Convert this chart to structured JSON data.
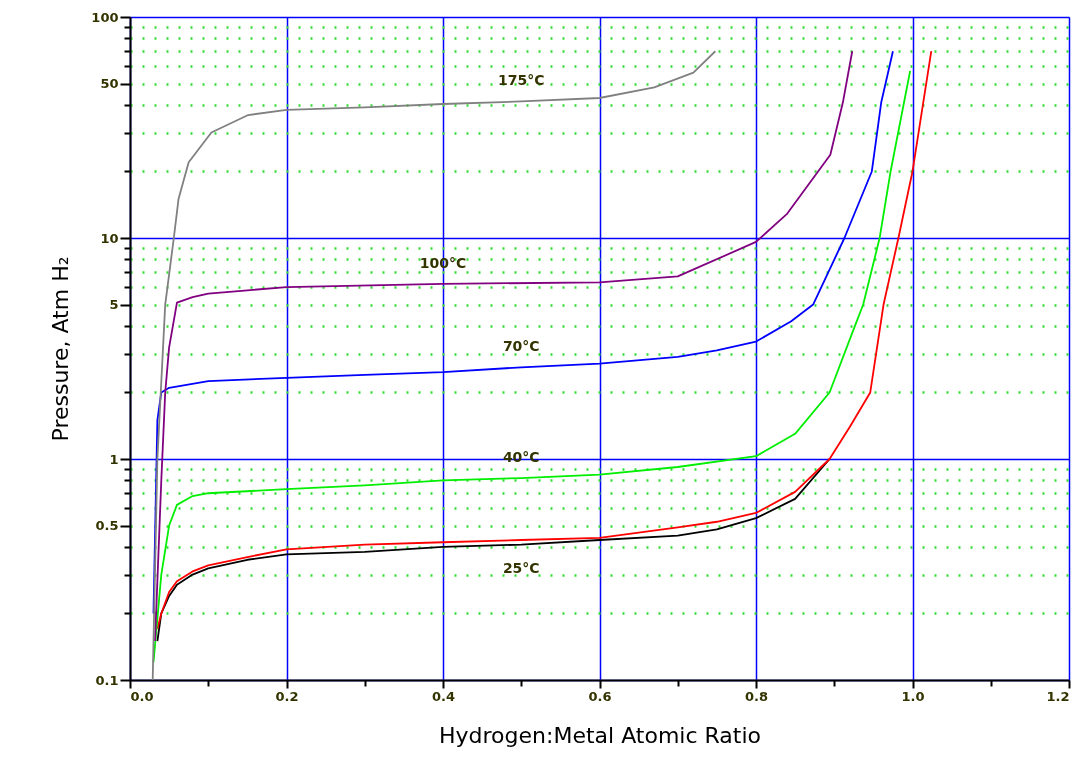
{
  "chart_data": {
    "type": "line",
    "xlabel": "Hydrogen:Metal Atomic Ratio",
    "ylabel": "Pressure, Atm H₂",
    "xlim": [
      0.0,
      1.2
    ],
    "xticks": [
      {
        "value": 0.0,
        "label": "0.0"
      },
      {
        "value": 0.1,
        "label": null
      },
      0.2,
      {
        "value": 0.3,
        "label": null
      },
      0.4,
      {
        "value": 0.5,
        "label": null
      },
      0.6,
      {
        "value": 0.7,
        "label": null
      },
      0.8,
      {
        "value": 0.9,
        "label": null
      },
      {
        "value": 1.0,
        "label": "1.0"
      },
      {
        "value": 1.1,
        "label": null
      },
      1.2
    ],
    "ylim": [
      0.1,
      100
    ],
    "yticks": [
      0.1,
      {
        "value": 0.2,
        "label": null
      },
      {
        "value": 0.3,
        "label": null
      },
      {
        "value": 0.4,
        "label": null
      },
      0.5,
      {
        "value": 0.6,
        "label": null
      },
      {
        "value": 0.7,
        "label": null
      },
      {
        "value": 0.8,
        "label": null
      },
      {
        "value": 0.9,
        "label": null
      },
      1,
      {
        "value": 2,
        "label": null
      },
      {
        "value": 3,
        "label": null
      },
      {
        "value": 4,
        "label": null
      },
      5,
      {
        "value": 6,
        "label": null
      },
      {
        "value": 7,
        "label": null
      },
      {
        "value": 8,
        "label": null
      },
      {
        "value": 9,
        "label": null
      },
      10,
      {
        "value": 20,
        "label": null
      },
      {
        "value": 30,
        "label": null
      },
      {
        "value": 40,
        "label": null
      },
      50,
      {
        "value": 60,
        "label": null
      },
      {
        "value": 70,
        "label": null
      },
      {
        "value": 80,
        "label": null
      },
      {
        "value": 90,
        "label": null
      },
      100
    ],
    "log": "y",
    "grid": true,
    "marker": "none",
    "line_style": "solid",
    "series": [
      {
        "name": "25°C",
        "color": "#000000",
        "x": [
          0.035,
          0.04,
          0.05,
          0.06,
          0.08,
          0.1,
          0.15,
          0.2,
          0.3,
          0.4,
          0.5,
          0.6,
          0.7,
          0.75,
          0.8,
          0.85,
          0.894
        ],
        "values": [
          0.15,
          0.2,
          0.24,
          0.27,
          0.3,
          0.32,
          0.35,
          0.37,
          0.38,
          0.4,
          0.41,
          0.43,
          0.45,
          0.48,
          0.54,
          0.66,
          1.0
        ]
      },
      {
        "color": "#ff0000",
        "x": [
          0.035,
          0.04,
          0.05,
          0.06,
          0.08,
          0.1,
          0.15,
          0.2,
          0.3,
          0.4,
          0.5,
          0.6,
          0.7,
          0.75,
          0.8,
          0.85,
          0.894,
          0.92,
          0.946,
          0.963,
          0.982,
          1.0,
          1.024
        ],
        "values": [
          0.17,
          0.2,
          0.25,
          0.28,
          0.31,
          0.33,
          0.36,
          0.39,
          0.41,
          0.42,
          0.43,
          0.44,
          0.49,
          0.52,
          0.57,
          0.71,
          1.0,
          1.4,
          2,
          5,
          10,
          20,
          70
        ]
      },
      {
        "name": "40°C",
        "color": "#00ee00",
        "x": [
          0.03,
          0.04,
          0.05,
          0.06,
          0.08,
          0.1,
          0.2,
          0.3,
          0.4,
          0.5,
          0.6,
          0.7,
          0.8,
          0.85,
          0.894,
          0.924,
          0.937,
          0.958,
          0.972,
          0.997
        ],
        "values": [
          0.12,
          0.3,
          0.5,
          0.62,
          0.68,
          0.7,
          0.73,
          0.76,
          0.8,
          0.82,
          0.85,
          0.92,
          1.03,
          1.3,
          2,
          3.8,
          5,
          10,
          20,
          57
        ]
      },
      {
        "name": "70°C",
        "color": "#0000ff",
        "x": [
          0.03,
          0.035,
          0.04,
          0.05,
          0.1,
          0.2,
          0.3,
          0.4,
          0.5,
          0.6,
          0.7,
          0.75,
          0.8,
          0.845,
          0.873,
          0.913,
          0.948,
          0.96,
          0.975
        ],
        "values": [
          0.2,
          1.5,
          2.0,
          2.1,
          2.25,
          2.33,
          2.4,
          2.47,
          2.6,
          2.7,
          2.9,
          3.1,
          3.4,
          4.2,
          5,
          10,
          20,
          41,
          70
        ]
      },
      {
        "name": "100°C",
        "color": "#800080",
        "x": [
          0.032,
          0.04,
          0.045,
          0.05,
          0.06,
          0.08,
          0.1,
          0.15,
          0.2,
          0.4,
          0.6,
          0.7,
          0.8,
          0.84,
          0.895,
          0.911,
          0.923
        ],
        "values": [
          0.15,
          0.8,
          2,
          3.2,
          5.1,
          5.4,
          5.6,
          5.8,
          6.0,
          6.2,
          6.3,
          6.7,
          9.6,
          12.9,
          23.8,
          41,
          70
        ]
      },
      {
        "name": "175°C",
        "color": "#808080",
        "x": [
          0.029,
          0.035,
          0.045,
          0.056,
          0.062,
          0.075,
          0.104,
          0.151,
          0.2,
          0.3,
          0.4,
          0.5,
          0.6,
          0.67,
          0.72,
          0.748
        ],
        "values": [
          0.1,
          1,
          5,
          10,
          15,
          22,
          30,
          36,
          38,
          39,
          40.4,
          41.5,
          43,
          48,
          56,
          70
        ]
      }
    ]
  }
}
